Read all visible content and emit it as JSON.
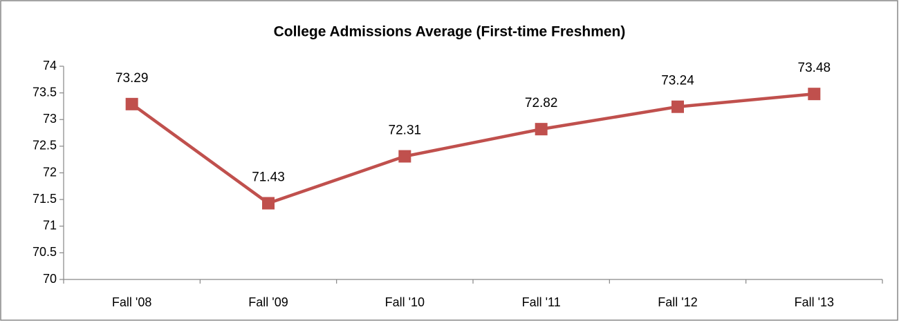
{
  "chart_data": {
    "type": "line",
    "title": "College Admissions Average (First-time Freshmen)",
    "categories": [
      "Fall '08",
      "Fall '09",
      "Fall '10",
      "Fall '11",
      "Fall '12",
      "Fall '13"
    ],
    "series": [
      {
        "name": "College Admissions Average",
        "color": "#c0504d",
        "values": [
          73.29,
          71.43,
          72.31,
          72.82,
          73.24,
          73.48
        ]
      }
    ],
    "ylim": [
      70,
      74
    ],
    "yticks": [
      70,
      70.5,
      71,
      71.5,
      72,
      72.5,
      73,
      73.5,
      74
    ],
    "grid": false,
    "data_labels": true,
    "legend": false
  }
}
